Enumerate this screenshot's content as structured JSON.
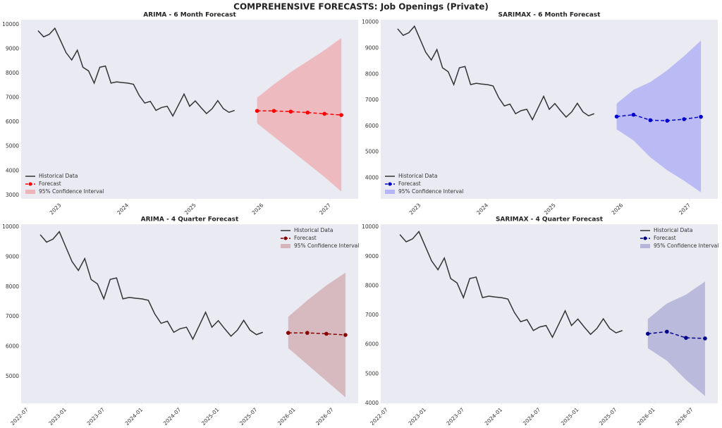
{
  "title": "COMPREHENSIVE FORECASTS: Job Openings (Private)",
  "chart_data": [
    {
      "type": "line",
      "title": "ARIMA - 6 Month Forecast",
      "legend": "lower left",
      "grid": false,
      "xlim": [
        "2022-06",
        "2027-06"
      ],
      "xticks": [
        "2023",
        "2024",
        "2025",
        "2026",
        "2027"
      ],
      "ylim": [
        2850,
        10200
      ],
      "yticks": [
        3000,
        4000,
        5000,
        6000,
        7000,
        8000,
        9000,
        10000
      ],
      "series": [
        {
          "name": "Historical Data",
          "color": "#333333",
          "style": "solid",
          "x": [
            "2022-09",
            "2022-10",
            "2022-11",
            "2022-12",
            "2023-01",
            "2023-02",
            "2023-03",
            "2023-04",
            "2023-05",
            "2023-06",
            "2023-07",
            "2023-08",
            "2023-09",
            "2023-10",
            "2023-11",
            "2023-12",
            "2024-01",
            "2024-02",
            "2024-03",
            "2024-04",
            "2024-05",
            "2024-06",
            "2024-07",
            "2024-08",
            "2024-09",
            "2024-10",
            "2024-11",
            "2024-12",
            "2025-01",
            "2025-02",
            "2025-03",
            "2025-04",
            "2025-05",
            "2025-06",
            "2025-07",
            "2025-08"
          ],
          "values": [
            9750,
            9500,
            9600,
            9850,
            9350,
            8850,
            8550,
            8950,
            8250,
            8100,
            7600,
            8250,
            8300,
            7600,
            7650,
            7620,
            7600,
            7550,
            7100,
            6780,
            6850,
            6480,
            6600,
            6650,
            6250,
            6700,
            7150,
            6650,
            6870,
            6600,
            6350,
            6550,
            6880,
            6550,
            6400,
            6480
          ]
        },
        {
          "name": "Forecast",
          "color": "#ff0000",
          "style": "dashed",
          "x": [
            "2025-12",
            "2026-03",
            "2026-06",
            "2026-09",
            "2026-12",
            "2027-03"
          ],
          "values": [
            6460,
            6460,
            6430,
            6390,
            6340,
            6290
          ]
        }
      ],
      "band": {
        "name": "95% Confidence Interval",
        "color": "#f08080",
        "x": [
          "2025-12",
          "2026-03",
          "2026-06",
          "2026-09",
          "2026-12",
          "2027-03"
        ],
        "lower": [
          5950,
          5400,
          4850,
          4300,
          3750,
          3150
        ],
        "upper": [
          7000,
          7550,
          8050,
          8500,
          8950,
          9450
        ]
      }
    },
    {
      "type": "line",
      "title": "SARIMAX - 6 Month Forecast",
      "legend": "lower left",
      "grid": false,
      "xlim": [
        "2022-06",
        "2027-06"
      ],
      "xticks": [
        "2023",
        "2024",
        "2025",
        "2026",
        "2027"
      ],
      "ylim": [
        3200,
        10100
      ],
      "yticks": [
        4000,
        5000,
        6000,
        7000,
        8000,
        9000,
        10000
      ],
      "series": [
        {
          "name": "Historical Data",
          "color": "#333333",
          "style": "solid",
          "x": [
            "2022-09",
            "2022-10",
            "2022-11",
            "2022-12",
            "2023-01",
            "2023-02",
            "2023-03",
            "2023-04",
            "2023-05",
            "2023-06",
            "2023-07",
            "2023-08",
            "2023-09",
            "2023-10",
            "2023-11",
            "2023-12",
            "2024-01",
            "2024-02",
            "2024-03",
            "2024-04",
            "2024-05",
            "2024-06",
            "2024-07",
            "2024-08",
            "2024-09",
            "2024-10",
            "2024-11",
            "2024-12",
            "2025-01",
            "2025-02",
            "2025-03",
            "2025-04",
            "2025-05",
            "2025-06",
            "2025-07",
            "2025-08"
          ],
          "values": [
            9750,
            9500,
            9600,
            9850,
            9350,
            8850,
            8550,
            8950,
            8250,
            8100,
            7600,
            8250,
            8300,
            7600,
            7650,
            7620,
            7600,
            7550,
            7100,
            6780,
            6850,
            6480,
            6600,
            6650,
            6250,
            6700,
            7150,
            6650,
            6870,
            6600,
            6350,
            6550,
            6880,
            6550,
            6400,
            6480
          ]
        },
        {
          "name": "Forecast",
          "color": "#0000cc",
          "style": "dashed",
          "x": [
            "2025-12",
            "2026-03",
            "2026-06",
            "2026-09",
            "2026-12",
            "2027-03"
          ],
          "values": [
            6370,
            6440,
            6230,
            6210,
            6270,
            6360
          ]
        }
      ],
      "band": {
        "name": "95% Confidence Interval",
        "color": "#8080f8",
        "x": [
          "2025-12",
          "2026-03",
          "2026-06",
          "2026-09",
          "2026-12",
          "2027-03"
        ],
        "lower": [
          5880,
          5450,
          4800,
          4300,
          3900,
          3450
        ],
        "upper": [
          6870,
          7400,
          7700,
          8150,
          8700,
          9300
        ]
      }
    },
    {
      "type": "line",
      "title": "ARIMA - 4 Quarter Forecast",
      "legend": "upper right",
      "grid": false,
      "xlim": [
        "2022-06",
        "2026-11"
      ],
      "xticks": [
        "2022-07",
        "2023-01",
        "2023-07",
        "2024-01",
        "2024-07",
        "2025-01",
        "2025-07",
        "2026-01",
        "2026-07"
      ],
      "ylim": [
        4100,
        10100
      ],
      "yticks": [
        5000,
        6000,
        7000,
        8000,
        9000,
        10000
      ],
      "series": [
        {
          "name": "Historical Data",
          "color": "#333333",
          "style": "solid",
          "x": [
            "2022-09",
            "2022-10",
            "2022-11",
            "2022-12",
            "2023-01",
            "2023-02",
            "2023-03",
            "2023-04",
            "2023-05",
            "2023-06",
            "2023-07",
            "2023-08",
            "2023-09",
            "2023-10",
            "2023-11",
            "2023-12",
            "2024-01",
            "2024-02",
            "2024-03",
            "2024-04",
            "2024-05",
            "2024-06",
            "2024-07",
            "2024-08",
            "2024-09",
            "2024-10",
            "2024-11",
            "2024-12",
            "2025-01",
            "2025-02",
            "2025-03",
            "2025-04",
            "2025-05",
            "2025-06",
            "2025-07",
            "2025-08"
          ],
          "values": [
            9750,
            9500,
            9600,
            9850,
            9350,
            8850,
            8550,
            8950,
            8250,
            8100,
            7600,
            8250,
            8300,
            7600,
            7650,
            7620,
            7600,
            7550,
            7100,
            6780,
            6850,
            6480,
            6600,
            6650,
            6250,
            6700,
            7150,
            6650,
            6870,
            6600,
            6350,
            6550,
            6880,
            6550,
            6400,
            6480
          ]
        },
        {
          "name": "Forecast",
          "color": "#8b0000",
          "style": "dashed",
          "x": [
            "2025-12",
            "2026-03",
            "2026-06",
            "2026-09"
          ],
          "values": [
            6460,
            6460,
            6430,
            6390
          ]
        }
      ],
      "band": {
        "name": "95% Confidence Interval",
        "color": "#c08080",
        "x": [
          "2025-12",
          "2026-03",
          "2026-06",
          "2026-09"
        ],
        "lower": [
          5950,
          5400,
          4850,
          4300
        ],
        "upper": [
          7000,
          7550,
          8050,
          8480
        ]
      }
    },
    {
      "type": "line",
      "title": "SARIMAX - 4 Quarter Forecast",
      "legend": "upper right",
      "grid": false,
      "xlim": [
        "2022-06",
        "2026-11"
      ],
      "xticks": [
        "2022-07",
        "2023-01",
        "2023-07",
        "2024-01",
        "2024-07",
        "2025-01",
        "2025-07",
        "2026-01",
        "2026-07"
      ],
      "ylim": [
        4000,
        10100
      ],
      "yticks": [
        4000,
        5000,
        6000,
        7000,
        8000,
        9000,
        10000
      ],
      "series": [
        {
          "name": "Historical Data",
          "color": "#333333",
          "style": "solid",
          "x": [
            "2022-09",
            "2022-10",
            "2022-11",
            "2022-12",
            "2023-01",
            "2023-02",
            "2023-03",
            "2023-04",
            "2023-05",
            "2023-06",
            "2023-07",
            "2023-08",
            "2023-09",
            "2023-10",
            "2023-11",
            "2023-12",
            "2024-01",
            "2024-02",
            "2024-03",
            "2024-04",
            "2024-05",
            "2024-06",
            "2024-07",
            "2024-08",
            "2024-09",
            "2024-10",
            "2024-11",
            "2024-12",
            "2025-01",
            "2025-02",
            "2025-03",
            "2025-04",
            "2025-05",
            "2025-06",
            "2025-07",
            "2025-08"
          ],
          "values": [
            9750,
            9500,
            9600,
            9850,
            9350,
            8850,
            8550,
            8950,
            8250,
            8100,
            7600,
            8250,
            8300,
            7600,
            7650,
            7620,
            7600,
            7550,
            7100,
            6780,
            6850,
            6480,
            6600,
            6650,
            6250,
            6700,
            7150,
            6650,
            6870,
            6600,
            6350,
            6550,
            6880,
            6550,
            6400,
            6480
          ]
        },
        {
          "name": "Forecast",
          "color": "#00008b",
          "style": "dashed",
          "x": [
            "2025-12",
            "2026-03",
            "2026-06",
            "2026-09"
          ],
          "values": [
            6370,
            6440,
            6230,
            6210
          ]
        }
      ],
      "band": {
        "name": "95% Confidence Interval",
        "color": "#8080c0",
        "x": [
          "2025-12",
          "2026-03",
          "2026-06",
          "2026-09"
        ],
        "lower": [
          5880,
          5450,
          4800,
          4250
        ],
        "upper": [
          6870,
          7400,
          7700,
          8150
        ]
      }
    }
  ]
}
